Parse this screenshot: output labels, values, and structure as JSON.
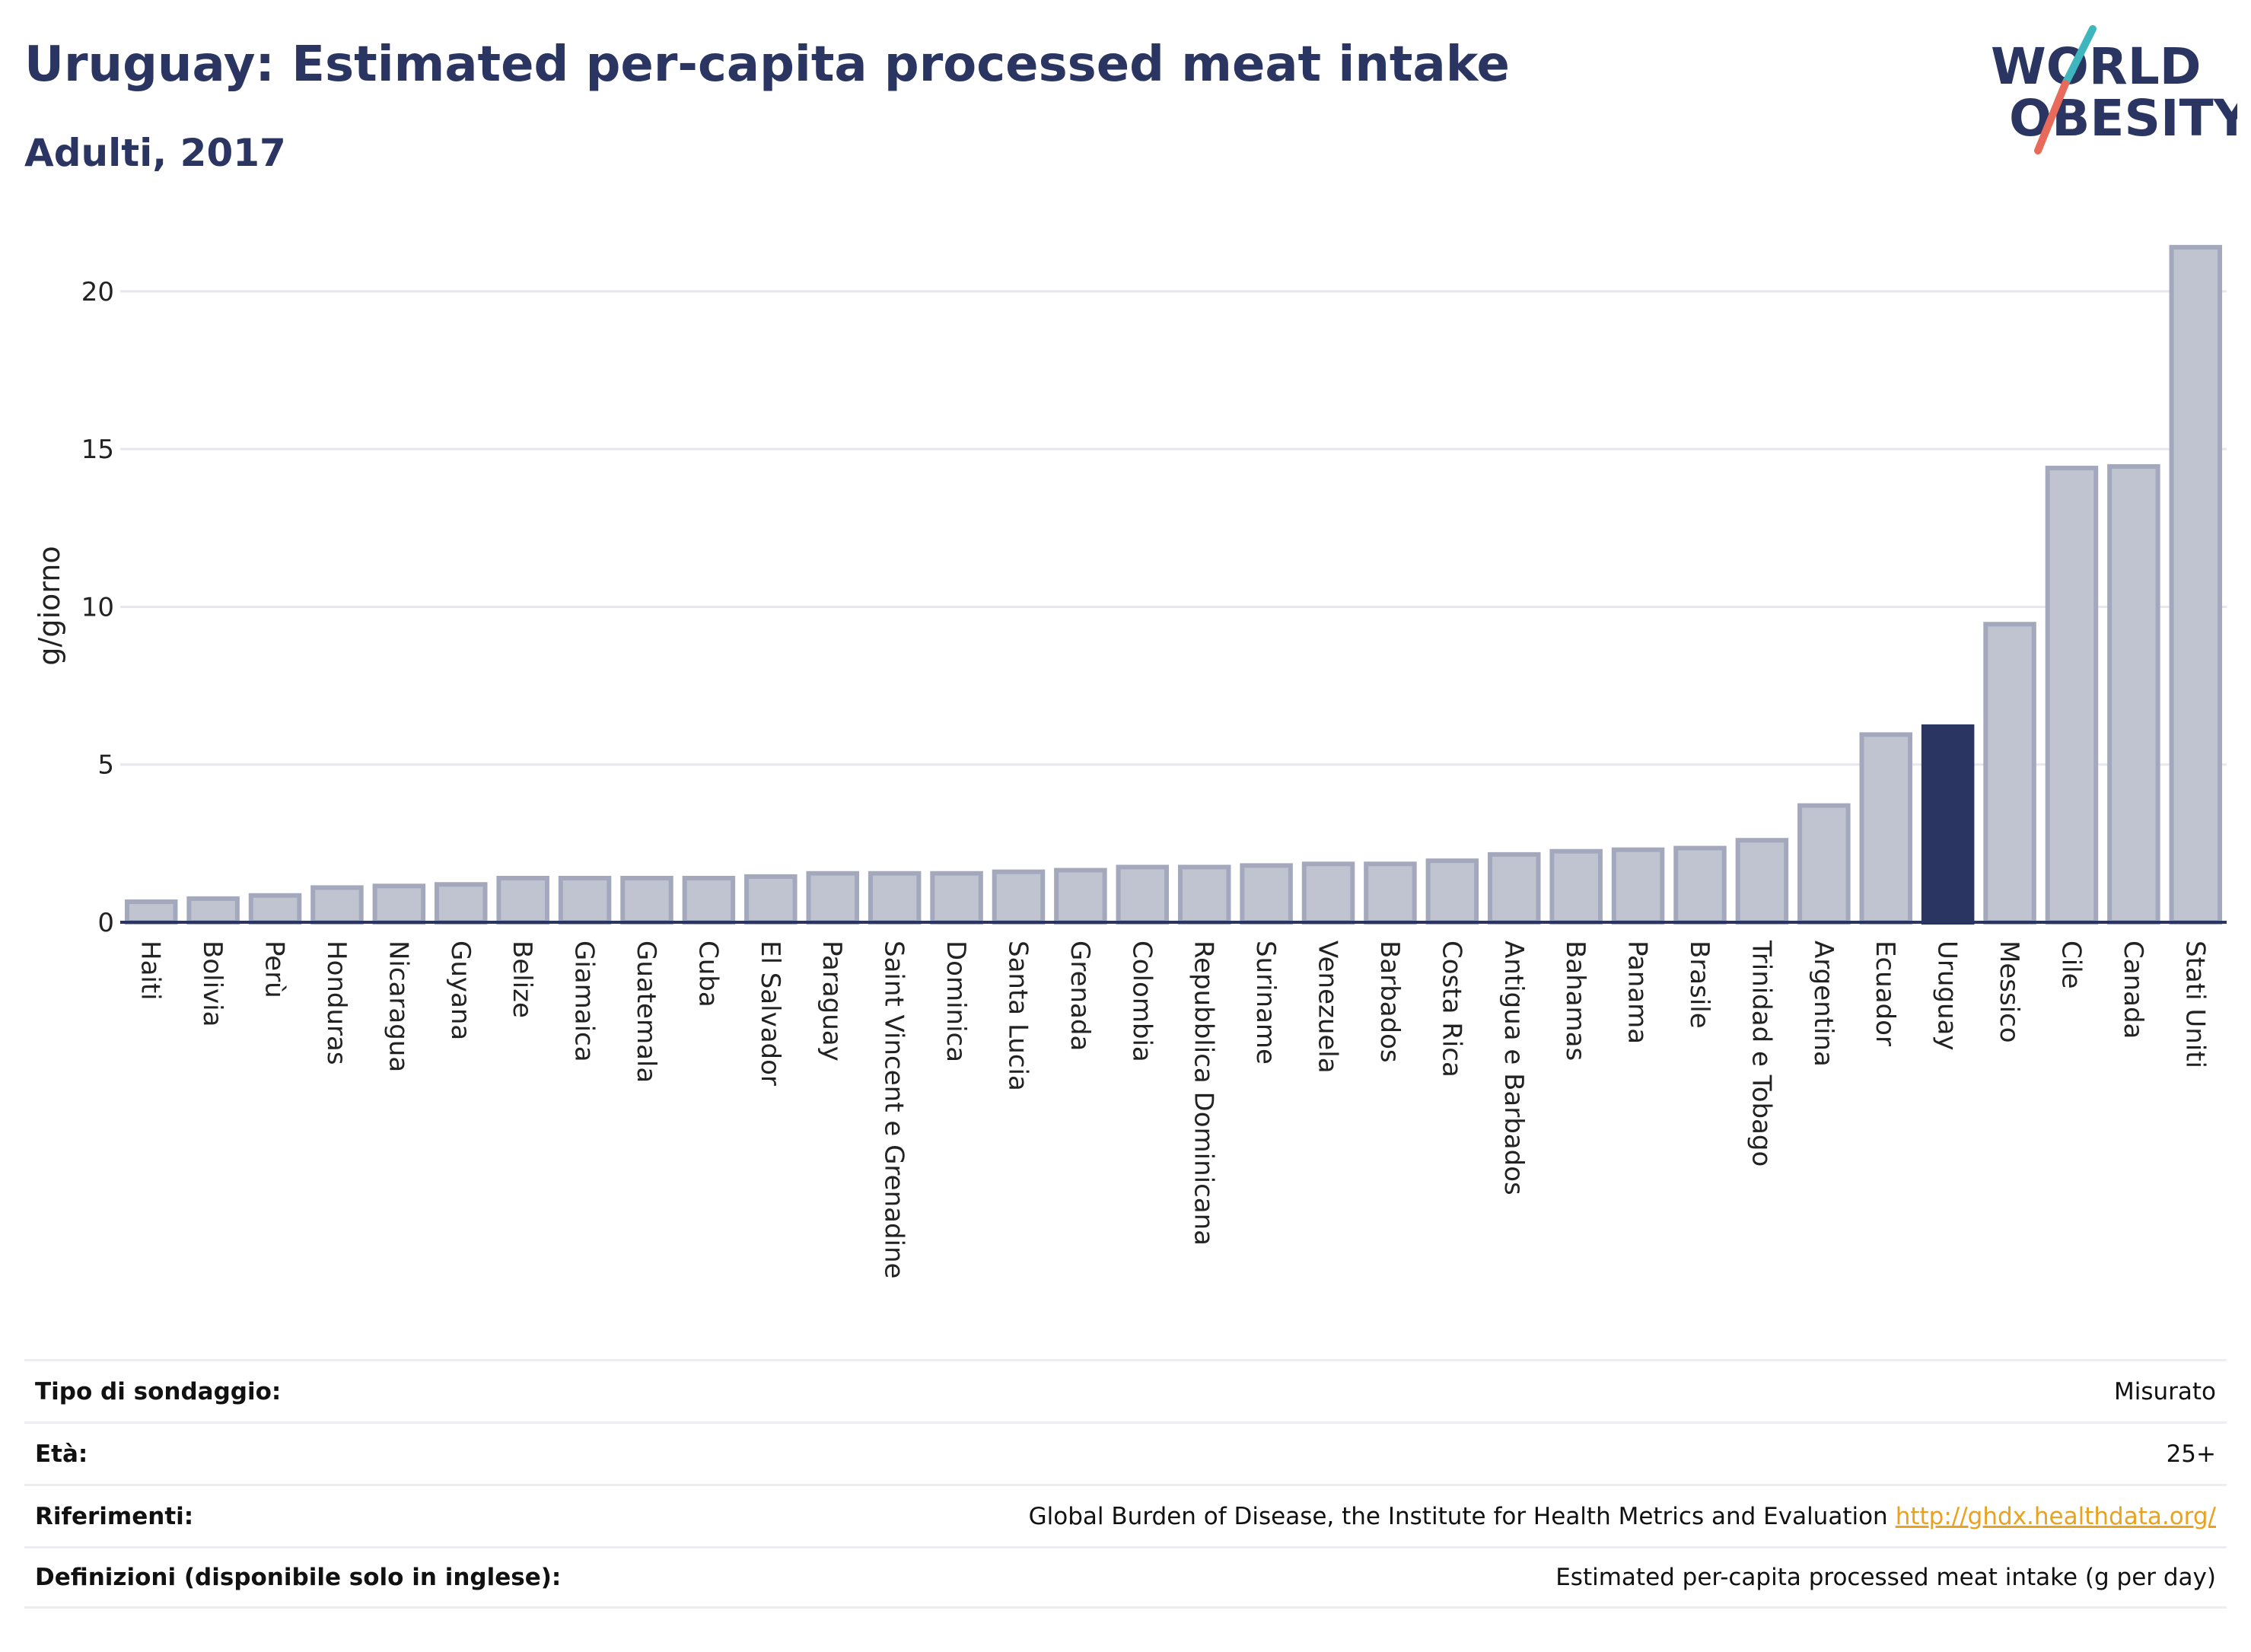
{
  "header": {
    "title": "Uruguay: Estimated per-capita processed meat intake",
    "subtitle": "Adulti, 2017"
  },
  "logo": {
    "line1": "WORLD",
    "line2": "OBESITY"
  },
  "chart_data": {
    "type": "bar",
    "ylabel": "g/giorno",
    "ylim": [
      0,
      22
    ],
    "yticks": [
      0,
      5,
      10,
      15,
      20
    ],
    "grid": true,
    "highlight": "Uruguay",
    "colors": {
      "bar": "#c0c4d1",
      "bar_border": "#a3a8bd",
      "highlight": "#2b3561",
      "axis": "#2b3561",
      "grid": "#e6e8ee"
    },
    "categories": [
      "Haiti",
      "Bolivia",
      "Perù",
      "Honduras",
      "Nicaragua",
      "Guyana",
      "Belize",
      "Giamaica",
      "Guatemala",
      "Cuba",
      "El Salvador",
      "Paraguay",
      "Saint Vincent e Grenadine",
      "Dominica",
      "Santa Lucia",
      "Grenada",
      "Colombia",
      "Repubblica Dominicana",
      "Suriname",
      "Venezuela",
      "Barbados",
      "Costa Rica",
      "Antigua e Barbados",
      "Bahamas",
      "Panama",
      "Brasile",
      "Trinidad e Tobago",
      "Argentina",
      "Ecuador",
      "Uruguay",
      "Messico",
      "Cile",
      "Canada",
      "Stati Uniti"
    ],
    "values": [
      0.65,
      0.75,
      0.85,
      1.1,
      1.15,
      1.2,
      1.4,
      1.4,
      1.4,
      1.4,
      1.45,
      1.55,
      1.55,
      1.55,
      1.6,
      1.65,
      1.75,
      1.75,
      1.8,
      1.85,
      1.85,
      1.95,
      2.15,
      2.25,
      2.3,
      2.35,
      2.6,
      3.7,
      5.95,
      6.2,
      9.45,
      14.4,
      14.45,
      21.4
    ]
  },
  "info": {
    "rows": [
      {
        "key": "Tipo di sondaggio:",
        "value": "Misurato"
      },
      {
        "key": "Età:",
        "value": "25+"
      },
      {
        "key": "Riferimenti:",
        "value": "Global Burden of Disease, the Institute for Health Metrics and Evaluation",
        "link": "http://ghdx.healthdata.org/"
      },
      {
        "key": "Definizioni (disponibile solo in inglese):",
        "value": "Estimated per-capita processed meat intake (g per day)"
      }
    ]
  }
}
